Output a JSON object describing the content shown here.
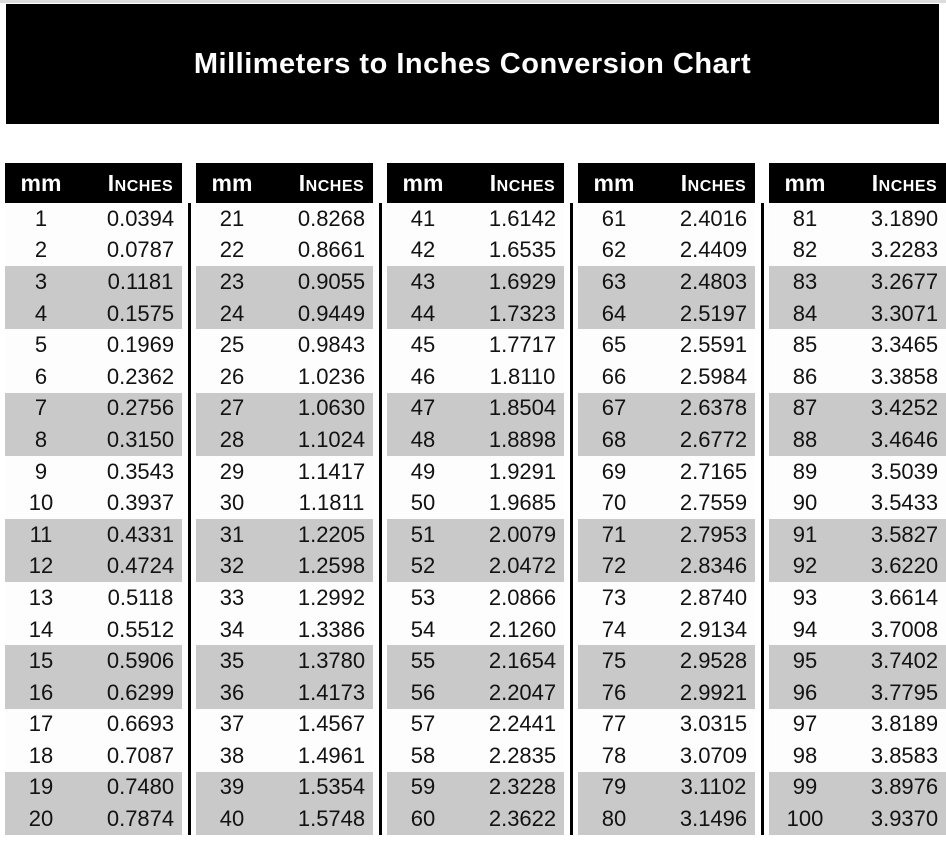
{
  "title": "Millimeters to Inches Conversion Chart",
  "colors": {
    "banner_bg": "#000000",
    "banner_text": "#ffffff",
    "header_bg": "#000000",
    "header_text": "#ffffff",
    "shaded_row": "#c9c9c9",
    "plain_row": "#fdfdfd",
    "divider": "#000000",
    "value_text": "#121212"
  },
  "chart_data": {
    "type": "table",
    "title": "Millimeters to Inches Conversion Chart",
    "columns": [
      "mm",
      "Inches"
    ],
    "layout": "5 side-by-side column groups of 20 rows; rows shaded gray in alternating pairs (3-4, 7-8, 11-12, 15-16, 19-20 of each group); thin black vertical divider between groups",
    "groups": [
      [
        [
          "1",
          "0.0394"
        ],
        [
          "2",
          "0.0787"
        ],
        [
          "3",
          "0.1181"
        ],
        [
          "4",
          "0.1575"
        ],
        [
          "5",
          "0.1969"
        ],
        [
          "6",
          "0.2362"
        ],
        [
          "7",
          "0.2756"
        ],
        [
          "8",
          "0.3150"
        ],
        [
          "9",
          "0.3543"
        ],
        [
          "10",
          "0.3937"
        ],
        [
          "11",
          "0.4331"
        ],
        [
          "12",
          "0.4724"
        ],
        [
          "13",
          "0.5118"
        ],
        [
          "14",
          "0.5512"
        ],
        [
          "15",
          "0.5906"
        ],
        [
          "16",
          "0.6299"
        ],
        [
          "17",
          "0.6693"
        ],
        [
          "18",
          "0.7087"
        ],
        [
          "19",
          "0.7480"
        ],
        [
          "20",
          "0.7874"
        ]
      ],
      [
        [
          "21",
          "0.8268"
        ],
        [
          "22",
          "0.8661"
        ],
        [
          "23",
          "0.9055"
        ],
        [
          "24",
          "0.9449"
        ],
        [
          "25",
          "0.9843"
        ],
        [
          "26",
          "1.0236"
        ],
        [
          "27",
          "1.0630"
        ],
        [
          "28",
          "1.1024"
        ],
        [
          "29",
          "1.1417"
        ],
        [
          "30",
          "1.1811"
        ],
        [
          "31",
          "1.2205"
        ],
        [
          "32",
          "1.2598"
        ],
        [
          "33",
          "1.2992"
        ],
        [
          "34",
          "1.3386"
        ],
        [
          "35",
          "1.3780"
        ],
        [
          "36",
          "1.4173"
        ],
        [
          "37",
          "1.4567"
        ],
        [
          "38",
          "1.4961"
        ],
        [
          "39",
          "1.5354"
        ],
        [
          "40",
          "1.5748"
        ]
      ],
      [
        [
          "41",
          "1.6142"
        ],
        [
          "42",
          "1.6535"
        ],
        [
          "43",
          "1.6929"
        ],
        [
          "44",
          "1.7323"
        ],
        [
          "45",
          "1.7717"
        ],
        [
          "46",
          "1.8110"
        ],
        [
          "47",
          "1.8504"
        ],
        [
          "48",
          "1.8898"
        ],
        [
          "49",
          "1.9291"
        ],
        [
          "50",
          "1.9685"
        ],
        [
          "51",
          "2.0079"
        ],
        [
          "52",
          "2.0472"
        ],
        [
          "53",
          "2.0866"
        ],
        [
          "54",
          "2.1260"
        ],
        [
          "55",
          "2.1654"
        ],
        [
          "56",
          "2.2047"
        ],
        [
          "57",
          "2.2441"
        ],
        [
          "58",
          "2.2835"
        ],
        [
          "59",
          "2.3228"
        ],
        [
          "60",
          "2.3622"
        ]
      ],
      [
        [
          "61",
          "2.4016"
        ],
        [
          "62",
          "2.4409"
        ],
        [
          "63",
          "2.4803"
        ],
        [
          "64",
          "2.5197"
        ],
        [
          "65",
          "2.5591"
        ],
        [
          "66",
          "2.5984"
        ],
        [
          "67",
          "2.6378"
        ],
        [
          "68",
          "2.6772"
        ],
        [
          "69",
          "2.7165"
        ],
        [
          "70",
          "2.7559"
        ],
        [
          "71",
          "2.7953"
        ],
        [
          "72",
          "2.8346"
        ],
        [
          "73",
          "2.8740"
        ],
        [
          "74",
          "2.9134"
        ],
        [
          "75",
          "2.9528"
        ],
        [
          "76",
          "2.9921"
        ],
        [
          "77",
          "3.0315"
        ],
        [
          "78",
          "3.0709"
        ],
        [
          "79",
          "3.1102"
        ],
        [
          "80",
          "3.1496"
        ]
      ],
      [
        [
          "81",
          "3.1890"
        ],
        [
          "82",
          "3.2283"
        ],
        [
          "83",
          "3.2677"
        ],
        [
          "84",
          "3.3071"
        ],
        [
          "85",
          "3.3465"
        ],
        [
          "86",
          "3.3858"
        ],
        [
          "87",
          "3.4252"
        ],
        [
          "88",
          "3.4646"
        ],
        [
          "89",
          "3.5039"
        ],
        [
          "90",
          "3.5433"
        ],
        [
          "91",
          "3.5827"
        ],
        [
          "92",
          "3.6220"
        ],
        [
          "93",
          "3.6614"
        ],
        [
          "94",
          "3.7008"
        ],
        [
          "95",
          "3.7402"
        ],
        [
          "96",
          "3.7795"
        ],
        [
          "97",
          "3.8189"
        ],
        [
          "98",
          "3.8583"
        ],
        [
          "99",
          "3.8976"
        ],
        [
          "100",
          "3.9370"
        ]
      ]
    ]
  }
}
